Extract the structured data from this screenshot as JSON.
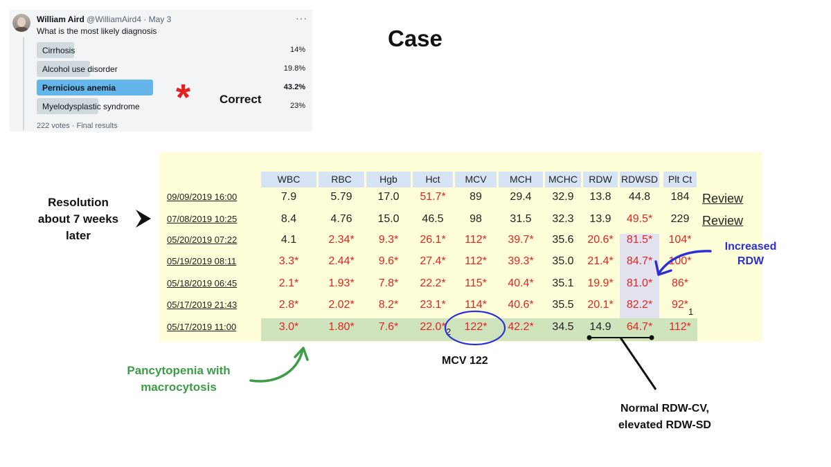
{
  "poll": {
    "author_name": "William Aird",
    "author_handle": "@WilliamAird4 · May 3",
    "more": "···",
    "question": "What is the most likely diagnosis",
    "options": [
      {
        "label": "Cirrhosis",
        "pct": "14%",
        "fraction": 0.14,
        "winner": false
      },
      {
        "label": "Alcohol use disorder",
        "pct": "19.8%",
        "fraction": 0.198,
        "winner": false
      },
      {
        "label": "Pernicious anemia",
        "pct": "43.2%",
        "fraction": 0.432,
        "winner": true
      },
      {
        "label": "Myelodysplastic syndrome",
        "pct": "23%",
        "fraction": 0.23,
        "winner": false
      }
    ],
    "votes": "222 votes · Final results",
    "correct_marker": "*",
    "correct_label": "Correct"
  },
  "title": "Case",
  "labs": {
    "columns": [
      "WBC",
      "RBC",
      "Hgb",
      "Hct",
      "MCV",
      "MCH",
      "MCHC",
      "RDW",
      "RDWSD",
      "Plt Ct"
    ],
    "rows": [
      {
        "date": "09/09/2019 16:00",
        "values": [
          "7.9",
          "5.79",
          "17.0",
          "51.7*",
          "89",
          "29.4",
          "32.9",
          "13.8",
          "44.8",
          "184"
        ],
        "review": "Review"
      },
      {
        "date": "07/08/2019 10:25",
        "values": [
          "8.4",
          "4.76",
          "15.0",
          "46.5",
          "98",
          "31.5",
          "32.3",
          "13.9",
          "49.5*",
          "229"
        ],
        "review": "Review"
      },
      {
        "date": "05/20/2019 07:22",
        "values": [
          "4.1",
          "2.34*",
          "9.3*",
          "26.1*",
          "112*",
          "39.7*",
          "35.6",
          "20.6*",
          "81.5*",
          "104*"
        ],
        "review": ""
      },
      {
        "date": "05/19/2019 08:11",
        "values": [
          "3.3*",
          "2.44*",
          "9.6*",
          "27.4*",
          "112*",
          "39.3*",
          "35.0",
          "21.4*",
          "84.7*",
          "100*"
        ],
        "review": ""
      },
      {
        "date": "05/18/2019 06:45",
        "values": [
          "2.1*",
          "1.93*",
          "7.8*",
          "22.2*",
          "115*",
          "40.4*",
          "35.1",
          "19.9*",
          "81.0*",
          "86*"
        ],
        "review": ""
      },
      {
        "date": "05/17/2019 21:43",
        "values": [
          "2.8*",
          "2.02*",
          "8.2*",
          "23.1*",
          "114*",
          "40.6*",
          "35.5",
          "20.1*",
          "82.2*",
          "92*"
        ],
        "review": ""
      },
      {
        "date": "05/17/2019 11:00",
        "values": [
          "3.0*",
          "1.80*",
          "7.6*",
          "22.0*",
          "122*",
          "42.2*",
          "34.5",
          "14.9",
          "64.7*",
          "112*"
        ],
        "review": ""
      }
    ],
    "footnote_1": "1",
    "footnote_2": "2"
  },
  "annotations": {
    "resolution": "Resolution about 7 weeks later",
    "increased_rdw": "Increased RDW",
    "pancytopenia": "Pancytopenia with macrocytosis",
    "mcv": "MCV 122",
    "rdw_note": "Normal RDW-CV, elevated RDW-SD"
  },
  "colors": {
    "abnormal": "#e32222",
    "poll_winner": "#63b5ea",
    "header_bg": "#d6e4f5",
    "table_bg": "#fefed8",
    "highlight_row": "#cfe4bd",
    "annotation_blue": "#2c2fd4",
    "annotation_green": "#3b9d46",
    "star_red": "#e52020"
  }
}
